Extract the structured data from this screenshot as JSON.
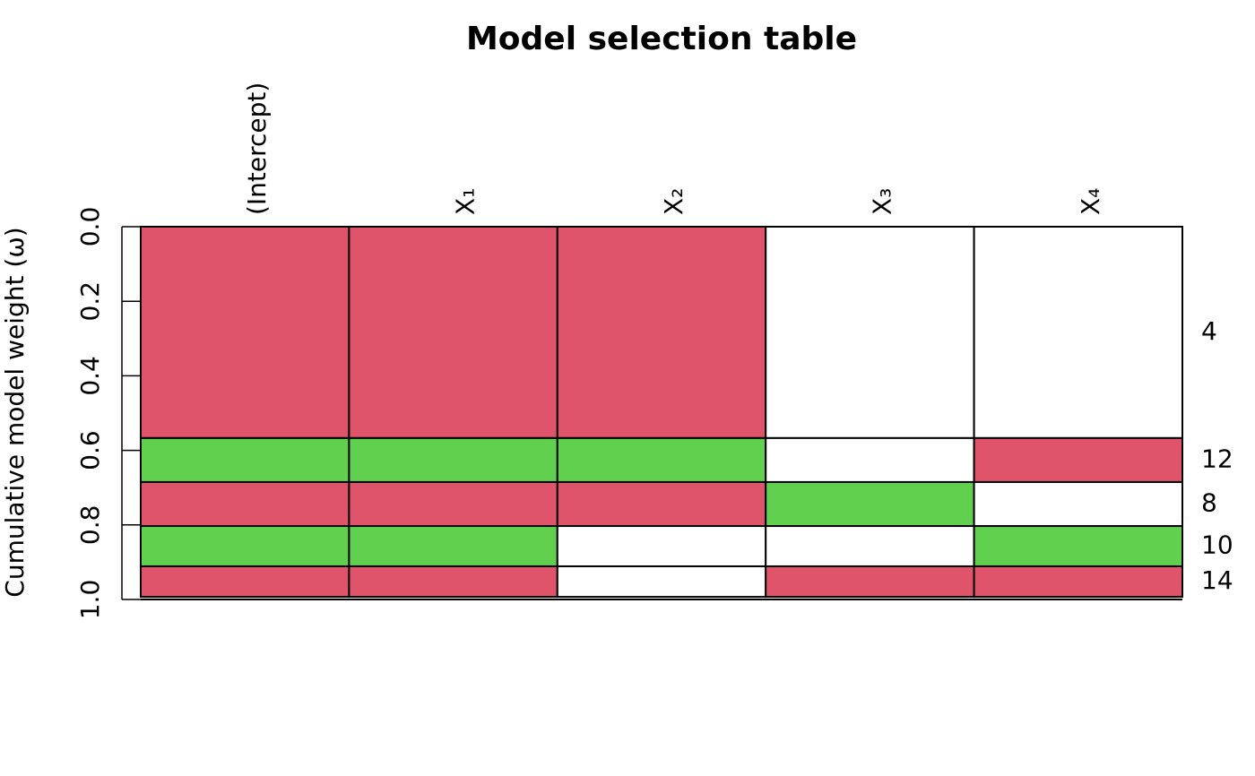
{
  "chart_data": {
    "type": "model-table",
    "title": "Model selection table",
    "y_label": "Cumulative model weight (ω)",
    "columns": [
      "(Intercept)",
      "X₁",
      "X₂",
      "X₃",
      "X₄"
    ],
    "models": [
      "4",
      "12",
      "8",
      "10",
      "14"
    ],
    "weights": [
      0.567,
      0.118,
      0.118,
      0.108,
      0.082
    ],
    "cells": [
      [
        "#DF536B",
        "#DF536B",
        "#DF536B",
        null,
        null
      ],
      [
        "#61D04F",
        "#61D04F",
        "#61D04F",
        null,
        "#DF536B"
      ],
      [
        "#DF536B",
        "#DF536B",
        "#DF536B",
        "#61D04F",
        null
      ],
      [
        "#61D04F",
        "#61D04F",
        null,
        null,
        "#61D04F"
      ],
      [
        "#DF536B",
        "#DF536B",
        null,
        "#DF536B",
        "#DF536B"
      ]
    ],
    "ylim": [
      0,
      1
    ],
    "yticks": [
      {
        "value": 0,
        "label": "0.0"
      },
      {
        "value": 0.2,
        "label": "0.2"
      },
      {
        "value": 0.4,
        "label": "0.4"
      },
      {
        "value": 0.6,
        "label": "0.6"
      },
      {
        "value": 0.8,
        "label": "0.8"
      },
      {
        "value": 1,
        "label": "1.0"
      }
    ]
  }
}
